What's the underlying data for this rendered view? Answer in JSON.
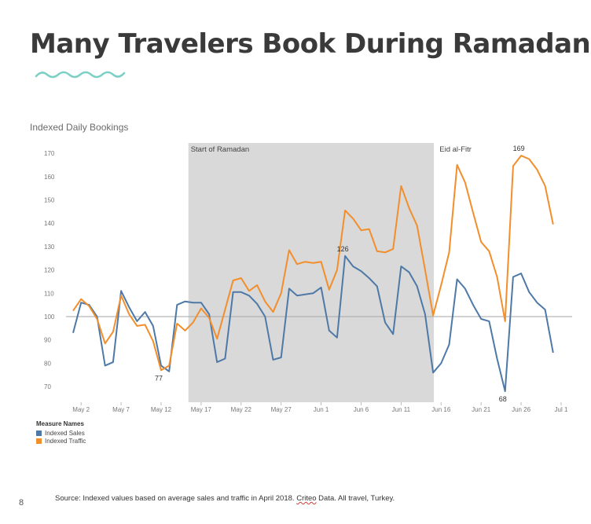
{
  "title": "Many Travelers Book During Ramadan",
  "subtitle": "Indexed Daily Bookings",
  "legend": {
    "title": "Measure Names",
    "items": [
      {
        "label": "Indexed Sales",
        "color": "#4e79a7"
      },
      {
        "label": "Indexed Traffic",
        "color": "#f28e2b"
      }
    ]
  },
  "footer": {
    "page_number": "8",
    "source_prefix": "Source: Indexed values based on average sales and traffic in April 2018. ",
    "source_brand": "Criteo",
    "source_suffix": " Data. All travel, Turkey."
  },
  "chart_data": {
    "type": "line",
    "ylim": [
      64,
      174
    ],
    "y_ticks": [
      70,
      80,
      90,
      100,
      110,
      120,
      130,
      140,
      150,
      160,
      170
    ],
    "reference_line": 100,
    "x_ticks": [
      {
        "day": 2,
        "label": "May 2"
      },
      {
        "day": 7,
        "label": "May 7"
      },
      {
        "day": 12,
        "label": "May 12"
      },
      {
        "day": 17,
        "label": "May 17"
      },
      {
        "day": 22,
        "label": "May 22"
      },
      {
        "day": 27,
        "label": "May 27"
      },
      {
        "day": 32,
        "label": "Jun 1"
      },
      {
        "day": 37,
        "label": "Jun 6"
      },
      {
        "day": 42,
        "label": "Jun 11"
      },
      {
        "day": 47,
        "label": "Jun 16"
      },
      {
        "day": 52,
        "label": "Jun 21"
      },
      {
        "day": 57,
        "label": "Jun 26"
      },
      {
        "day": 62,
        "label": "Jul 1"
      }
    ],
    "x": [
      1,
      2,
      3,
      4,
      5,
      6,
      7,
      8,
      9,
      10,
      11,
      12,
      13,
      14,
      15,
      16,
      17,
      18,
      19,
      20,
      21,
      22,
      23,
      24,
      25,
      26,
      27,
      28,
      29,
      30,
      31,
      32,
      33,
      34,
      35,
      36,
      37,
      38,
      39,
      40,
      41,
      42,
      43,
      44,
      45,
      46,
      47,
      48,
      49,
      50,
      51,
      52,
      53,
      54,
      55,
      56,
      57,
      58,
      59,
      60,
      61
    ],
    "series": [
      {
        "name": "Indexed Sales",
        "color": "#4e79a7",
        "values": [
          93,
          106,
          105,
          100,
          79,
          80.5,
          111,
          104,
          98,
          102,
          96,
          79,
          76.5,
          105,
          106.5,
          106,
          106,
          101,
          80.5,
          82,
          110.5,
          110.5,
          109,
          105.5,
          100,
          81.5,
          82.5,
          112,
          109,
          109.5,
          110,
          112.5,
          94,
          91,
          126,
          121.5,
          119.5,
          116.5,
          113,
          97.5,
          92.5,
          121.5,
          119,
          113,
          101,
          76,
          80,
          88,
          116,
          112,
          105,
          99,
          98,
          82,
          68,
          117,
          118.5,
          110.5,
          106,
          103,
          84.5
        ]
      },
      {
        "name": "Indexed Traffic",
        "color": "#f28e2b",
        "values": [
          102.5,
          107.5,
          104.5,
          99,
          88.5,
          93.5,
          109,
          101,
          96,
          96.5,
          89.5,
          77,
          79,
          97,
          94,
          97.5,
          103.5,
          99.5,
          90.5,
          103,
          115.5,
          116.5,
          111,
          113.5,
          106.5,
          102,
          110,
          128.5,
          122.5,
          123.5,
          123,
          123.5,
          111.5,
          120,
          145.5,
          142,
          137,
          137.5,
          128,
          127.5,
          129,
          156,
          146.5,
          139,
          120,
          100.5,
          113.5,
          127.5,
          165,
          157.5,
          144.5,
          132,
          128,
          117,
          98,
          164.5,
          169,
          167.5,
          163,
          156,
          139.5
        ]
      }
    ],
    "bands": [
      {
        "from_day": 16,
        "to_day": 46,
        "label": "Start of Ramadan"
      }
    ],
    "markers": [
      {
        "day": 47,
        "label": "Eid al-Fitr"
      }
    ],
    "annotations": [
      {
        "day": 12,
        "value": 77,
        "label": "77"
      },
      {
        "day": 35,
        "value": 126,
        "label": "126"
      },
      {
        "day": 55,
        "value": 68,
        "label": "68"
      },
      {
        "day": 57,
        "value": 169,
        "label": "169"
      }
    ]
  }
}
